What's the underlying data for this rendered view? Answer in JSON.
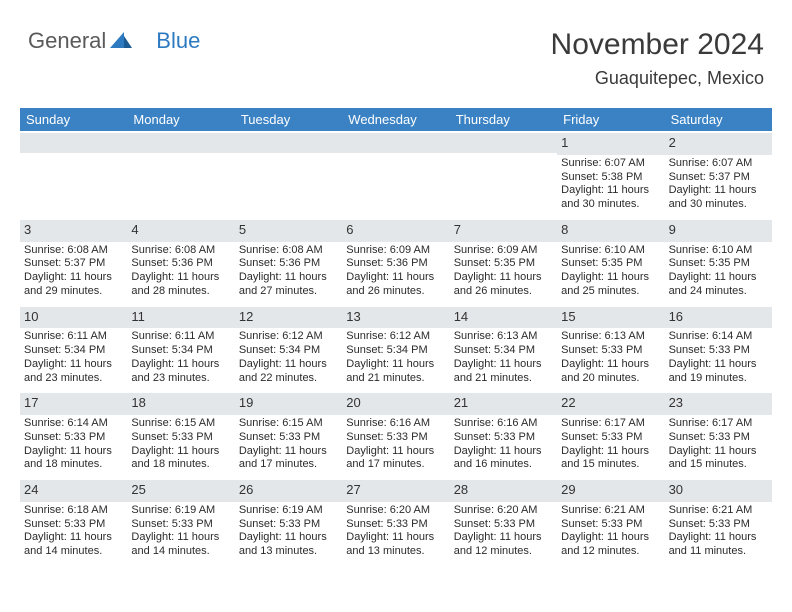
{
  "brand": {
    "part1": "General",
    "part2": "Blue"
  },
  "title": "November 2024",
  "location": "Guaquitepec, Mexico",
  "colors": {
    "header_bg": "#3b82c4",
    "band_bg": "#e4e7ea",
    "text": "#333333",
    "brand_gray": "#5a5a5a",
    "brand_blue": "#2e7ac0"
  },
  "day_names": [
    "Sunday",
    "Monday",
    "Tuesday",
    "Wednesday",
    "Thursday",
    "Friday",
    "Saturday"
  ],
  "weeks": [
    [
      {
        "num": "",
        "sunrise": "",
        "sunset": "",
        "daylight": ""
      },
      {
        "num": "",
        "sunrise": "",
        "sunset": "",
        "daylight": ""
      },
      {
        "num": "",
        "sunrise": "",
        "sunset": "",
        "daylight": ""
      },
      {
        "num": "",
        "sunrise": "",
        "sunset": "",
        "daylight": ""
      },
      {
        "num": "",
        "sunrise": "",
        "sunset": "",
        "daylight": ""
      },
      {
        "num": "1",
        "sunrise": "Sunrise: 6:07 AM",
        "sunset": "Sunset: 5:38 PM",
        "daylight": "Daylight: 11 hours and 30 minutes."
      },
      {
        "num": "2",
        "sunrise": "Sunrise: 6:07 AM",
        "sunset": "Sunset: 5:37 PM",
        "daylight": "Daylight: 11 hours and 30 minutes."
      }
    ],
    [
      {
        "num": "3",
        "sunrise": "Sunrise: 6:08 AM",
        "sunset": "Sunset: 5:37 PM",
        "daylight": "Daylight: 11 hours and 29 minutes."
      },
      {
        "num": "4",
        "sunrise": "Sunrise: 6:08 AM",
        "sunset": "Sunset: 5:36 PM",
        "daylight": "Daylight: 11 hours and 28 minutes."
      },
      {
        "num": "5",
        "sunrise": "Sunrise: 6:08 AM",
        "sunset": "Sunset: 5:36 PM",
        "daylight": "Daylight: 11 hours and 27 minutes."
      },
      {
        "num": "6",
        "sunrise": "Sunrise: 6:09 AM",
        "sunset": "Sunset: 5:36 PM",
        "daylight": "Daylight: 11 hours and 26 minutes."
      },
      {
        "num": "7",
        "sunrise": "Sunrise: 6:09 AM",
        "sunset": "Sunset: 5:35 PM",
        "daylight": "Daylight: 11 hours and 26 minutes."
      },
      {
        "num": "8",
        "sunrise": "Sunrise: 6:10 AM",
        "sunset": "Sunset: 5:35 PM",
        "daylight": "Daylight: 11 hours and 25 minutes."
      },
      {
        "num": "9",
        "sunrise": "Sunrise: 6:10 AM",
        "sunset": "Sunset: 5:35 PM",
        "daylight": "Daylight: 11 hours and 24 minutes."
      }
    ],
    [
      {
        "num": "10",
        "sunrise": "Sunrise: 6:11 AM",
        "sunset": "Sunset: 5:34 PM",
        "daylight": "Daylight: 11 hours and 23 minutes."
      },
      {
        "num": "11",
        "sunrise": "Sunrise: 6:11 AM",
        "sunset": "Sunset: 5:34 PM",
        "daylight": "Daylight: 11 hours and 23 minutes."
      },
      {
        "num": "12",
        "sunrise": "Sunrise: 6:12 AM",
        "sunset": "Sunset: 5:34 PM",
        "daylight": "Daylight: 11 hours and 22 minutes."
      },
      {
        "num": "13",
        "sunrise": "Sunrise: 6:12 AM",
        "sunset": "Sunset: 5:34 PM",
        "daylight": "Daylight: 11 hours and 21 minutes."
      },
      {
        "num": "14",
        "sunrise": "Sunrise: 6:13 AM",
        "sunset": "Sunset: 5:34 PM",
        "daylight": "Daylight: 11 hours and 21 minutes."
      },
      {
        "num": "15",
        "sunrise": "Sunrise: 6:13 AM",
        "sunset": "Sunset: 5:33 PM",
        "daylight": "Daylight: 11 hours and 20 minutes."
      },
      {
        "num": "16",
        "sunrise": "Sunrise: 6:14 AM",
        "sunset": "Sunset: 5:33 PM",
        "daylight": "Daylight: 11 hours and 19 minutes."
      }
    ],
    [
      {
        "num": "17",
        "sunrise": "Sunrise: 6:14 AM",
        "sunset": "Sunset: 5:33 PM",
        "daylight": "Daylight: 11 hours and 18 minutes."
      },
      {
        "num": "18",
        "sunrise": "Sunrise: 6:15 AM",
        "sunset": "Sunset: 5:33 PM",
        "daylight": "Daylight: 11 hours and 18 minutes."
      },
      {
        "num": "19",
        "sunrise": "Sunrise: 6:15 AM",
        "sunset": "Sunset: 5:33 PM",
        "daylight": "Daylight: 11 hours and 17 minutes."
      },
      {
        "num": "20",
        "sunrise": "Sunrise: 6:16 AM",
        "sunset": "Sunset: 5:33 PM",
        "daylight": "Daylight: 11 hours and 17 minutes."
      },
      {
        "num": "21",
        "sunrise": "Sunrise: 6:16 AM",
        "sunset": "Sunset: 5:33 PM",
        "daylight": "Daylight: 11 hours and 16 minutes."
      },
      {
        "num": "22",
        "sunrise": "Sunrise: 6:17 AM",
        "sunset": "Sunset: 5:33 PM",
        "daylight": "Daylight: 11 hours and 15 minutes."
      },
      {
        "num": "23",
        "sunrise": "Sunrise: 6:17 AM",
        "sunset": "Sunset: 5:33 PM",
        "daylight": "Daylight: 11 hours and 15 minutes."
      }
    ],
    [
      {
        "num": "24",
        "sunrise": "Sunrise: 6:18 AM",
        "sunset": "Sunset: 5:33 PM",
        "daylight": "Daylight: 11 hours and 14 minutes."
      },
      {
        "num": "25",
        "sunrise": "Sunrise: 6:19 AM",
        "sunset": "Sunset: 5:33 PM",
        "daylight": "Daylight: 11 hours and 14 minutes."
      },
      {
        "num": "26",
        "sunrise": "Sunrise: 6:19 AM",
        "sunset": "Sunset: 5:33 PM",
        "daylight": "Daylight: 11 hours and 13 minutes."
      },
      {
        "num": "27",
        "sunrise": "Sunrise: 6:20 AM",
        "sunset": "Sunset: 5:33 PM",
        "daylight": "Daylight: 11 hours and 13 minutes."
      },
      {
        "num": "28",
        "sunrise": "Sunrise: 6:20 AM",
        "sunset": "Sunset: 5:33 PM",
        "daylight": "Daylight: 11 hours and 12 minutes."
      },
      {
        "num": "29",
        "sunrise": "Sunrise: 6:21 AM",
        "sunset": "Sunset: 5:33 PM",
        "daylight": "Daylight: 11 hours and 12 minutes."
      },
      {
        "num": "30",
        "sunrise": "Sunrise: 6:21 AM",
        "sunset": "Sunset: 5:33 PM",
        "daylight": "Daylight: 11 hours and 11 minutes."
      }
    ]
  ]
}
